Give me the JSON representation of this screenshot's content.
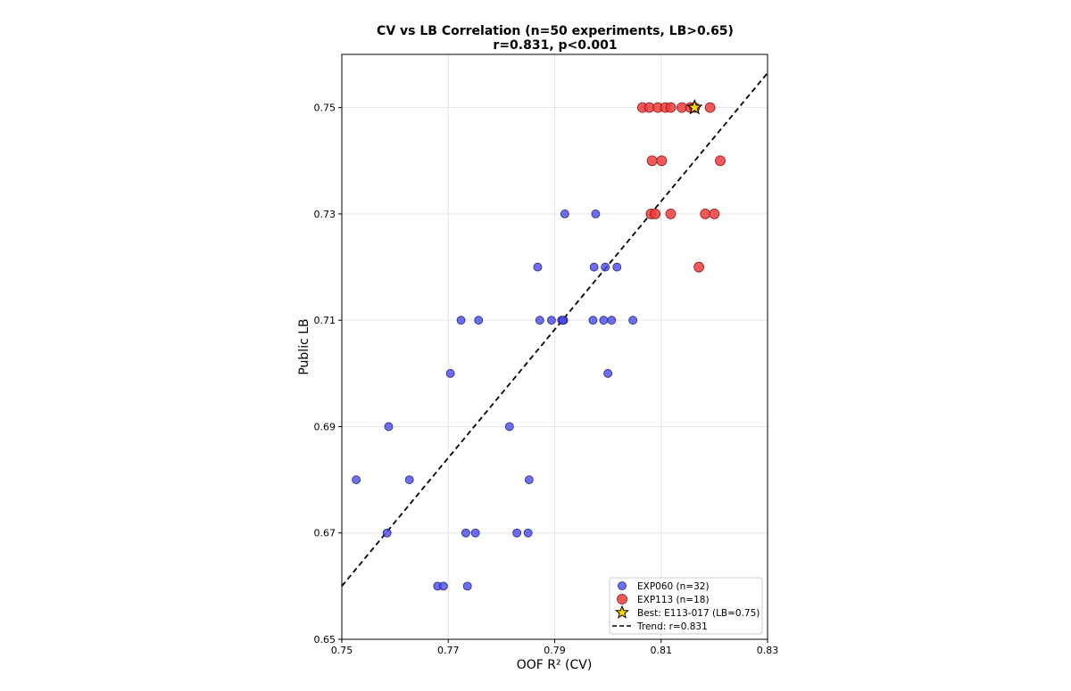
{
  "chart_data": {
    "type": "scatter",
    "title": "CV vs LB Correlation (n=50 experiments, LB>0.65)",
    "subtitle": "r=0.831, p<0.001",
    "xlabel": "OOF R² (CV)",
    "ylabel": "Public LB",
    "xlim": [
      0.75,
      0.83
    ],
    "ylim": [
      0.65,
      0.76
    ],
    "xticks": [
      "0.75",
      "0.77",
      "0.79",
      "0.81",
      "0.83"
    ],
    "yticks": [
      "0.65",
      "0.67",
      "0.69",
      "0.71",
      "0.73",
      "0.75"
    ],
    "grid": true,
    "legend_position": "bottom-right",
    "series": [
      {
        "name": "EXP060 (n=32)",
        "color": "#4a4af0",
        "marker": "circle",
        "points": [
          [
            0.7527,
            0.68
          ],
          [
            0.7585,
            0.67
          ],
          [
            0.7588,
            0.69
          ],
          [
            0.7627,
            0.68
          ],
          [
            0.768,
            0.66
          ],
          [
            0.7691,
            0.66
          ],
          [
            0.7704,
            0.7
          ],
          [
            0.7724,
            0.71
          ],
          [
            0.7733,
            0.67
          ],
          [
            0.7736,
            0.66
          ],
          [
            0.7751,
            0.67
          ],
          [
            0.7757,
            0.71
          ],
          [
            0.7815,
            0.69
          ],
          [
            0.7829,
            0.67
          ],
          [
            0.785,
            0.67
          ],
          [
            0.7852,
            0.68
          ],
          [
            0.7868,
            0.72
          ],
          [
            0.7872,
            0.71
          ],
          [
            0.7894,
            0.71
          ],
          [
            0.7913,
            0.71
          ],
          [
            0.7917,
            0.71
          ],
          [
            0.7919,
            0.73
          ],
          [
            0.7972,
            0.71
          ],
          [
            0.7974,
            0.72
          ],
          [
            0.7977,
            0.73
          ],
          [
            0.7992,
            0.71
          ],
          [
            0.7995,
            0.72
          ],
          [
            0.8,
            0.7
          ],
          [
            0.8007,
            0.71
          ],
          [
            0.8017,
            0.72
          ],
          [
            0.8047,
            0.71
          ],
          [
            0.7915,
            0.71
          ]
        ]
      },
      {
        "name": "EXP113 (n=18)",
        "color": "#f03c3c",
        "marker": "circle",
        "points": [
          [
            0.8065,
            0.75
          ],
          [
            0.8078,
            0.75
          ],
          [
            0.8094,
            0.75
          ],
          [
            0.8108,
            0.75
          ],
          [
            0.8118,
            0.75
          ],
          [
            0.8139,
            0.75
          ],
          [
            0.8155,
            0.75
          ],
          [
            0.8192,
            0.75
          ],
          [
            0.8083,
            0.74
          ],
          [
            0.8101,
            0.74
          ],
          [
            0.8211,
            0.74
          ],
          [
            0.8081,
            0.73
          ],
          [
            0.8089,
            0.73
          ],
          [
            0.8118,
            0.73
          ],
          [
            0.8183,
            0.73
          ],
          [
            0.82,
            0.73
          ],
          [
            0.8171,
            0.72
          ],
          [
            0.8163,
            0.75
          ]
        ]
      },
      {
        "name": "Best: E113-017 (LB=0.75)",
        "color": "#ffd700",
        "marker": "star",
        "points": [
          [
            0.8163,
            0.75
          ]
        ]
      }
    ],
    "trend": {
      "name": "Trend: r=0.831",
      "color": "#000000",
      "style": "dashed",
      "points": [
        [
          0.75,
          0.66
        ],
        [
          0.83,
          0.7565
        ]
      ]
    }
  }
}
